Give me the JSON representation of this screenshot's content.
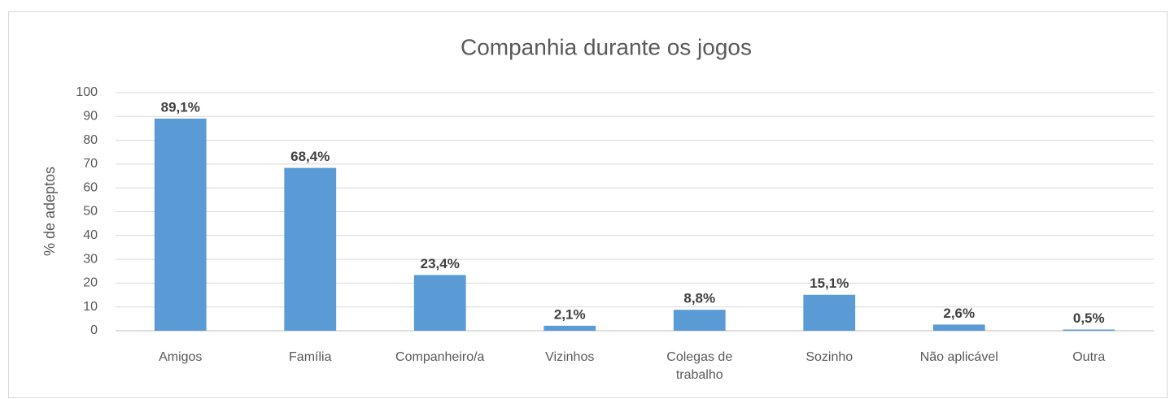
{
  "chart_data": {
    "type": "bar",
    "title": "Companhia durante os jogos",
    "y_label": "% de adeptos",
    "categories": [
      "Amigos",
      "Família",
      "Companheiro/a",
      "Vizinhos",
      "Colegas de trabalho",
      "Sozinho",
      "Não aplicável",
      "Outra"
    ],
    "values": [
      89.1,
      68.4,
      23.4,
      2.1,
      8.8,
      15.1,
      2.6,
      0.5
    ],
    "value_labels": [
      "89,1%",
      "68,4%",
      "23,4%",
      "2,1%",
      "8,8%",
      "15,1%",
      "2,6%",
      "0,5%"
    ],
    "color": "#5b9bd5",
    "ylim": [
      0,
      100
    ],
    "yticks": [
      0,
      10,
      20,
      30,
      40,
      50,
      60,
      70,
      80,
      90,
      100
    ],
    "grid": true
  }
}
